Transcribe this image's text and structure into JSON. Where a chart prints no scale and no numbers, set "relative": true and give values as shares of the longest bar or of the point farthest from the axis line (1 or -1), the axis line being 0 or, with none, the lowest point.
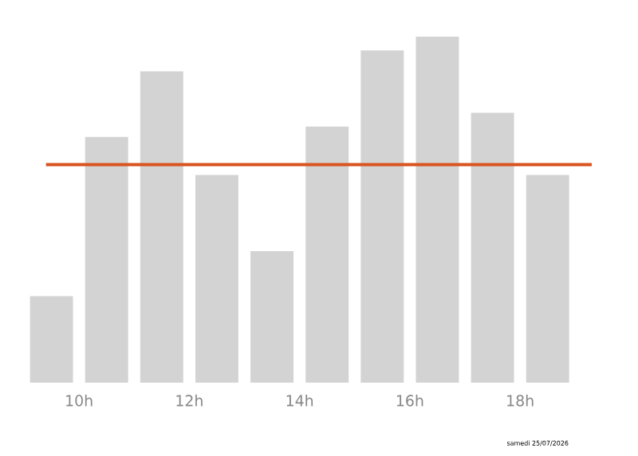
{
  "chart_data": {
    "type": "bar",
    "relative": true,
    "x": [
      9.5,
      10.5,
      11.5,
      12.5,
      13.5,
      14.5,
      15.5,
      16.5,
      17.5,
      18.5
    ],
    "values": [
      0.25,
      0.71,
      0.9,
      0.6,
      0.38,
      0.74,
      0.96,
      1,
      0.78,
      0.6
    ],
    "color": "#d3d3d3",
    "xlim": [
      9,
      19.3
    ],
    "xticks": [
      {
        "value": 10,
        "label": "10h"
      },
      {
        "value": 12,
        "label": "12h"
      },
      {
        "value": 14,
        "label": "14h"
      },
      {
        "value": 16,
        "label": "16h"
      },
      {
        "value": 18,
        "label": "18h"
      }
    ],
    "ref_lines": [
      {
        "axis": "y",
        "value": 0.63,
        "color": "#d9541e"
      }
    ],
    "annotations": [
      "samedi 25/07/2026"
    ]
  }
}
